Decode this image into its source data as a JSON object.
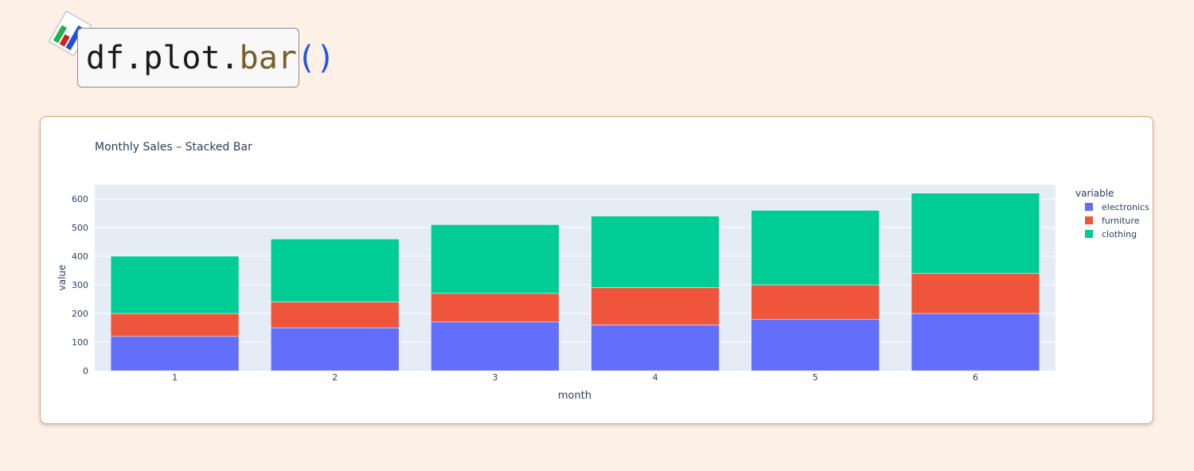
{
  "header": {
    "code_prefix": "df.plot.",
    "code_function": "bar",
    "code_open_paren": "(",
    "code_close_paren": ")",
    "icon": "bar-chart-icon"
  },
  "chart_data": {
    "type": "bar",
    "stacked": true,
    "title": "Monthly Sales – Stacked Bar",
    "xlabel": "month",
    "ylabel": "value",
    "categories": [
      "1",
      "2",
      "3",
      "4",
      "5",
      "6"
    ],
    "ylim": [
      0,
      650
    ],
    "yticks": [
      0,
      100,
      200,
      300,
      400,
      500,
      600
    ],
    "grid": true,
    "legend_title": "variable",
    "legend_position": "right",
    "series": [
      {
        "name": "electronics",
        "color": "#636efa",
        "values": [
          120,
          150,
          170,
          160,
          180,
          200
        ]
      },
      {
        "name": "furniture",
        "color": "#ef553b",
        "values": [
          80,
          90,
          100,
          130,
          120,
          140
        ]
      },
      {
        "name": "clothing",
        "color": "#00cc96",
        "values": [
          200,
          220,
          240,
          250,
          260,
          280
        ]
      }
    ]
  }
}
